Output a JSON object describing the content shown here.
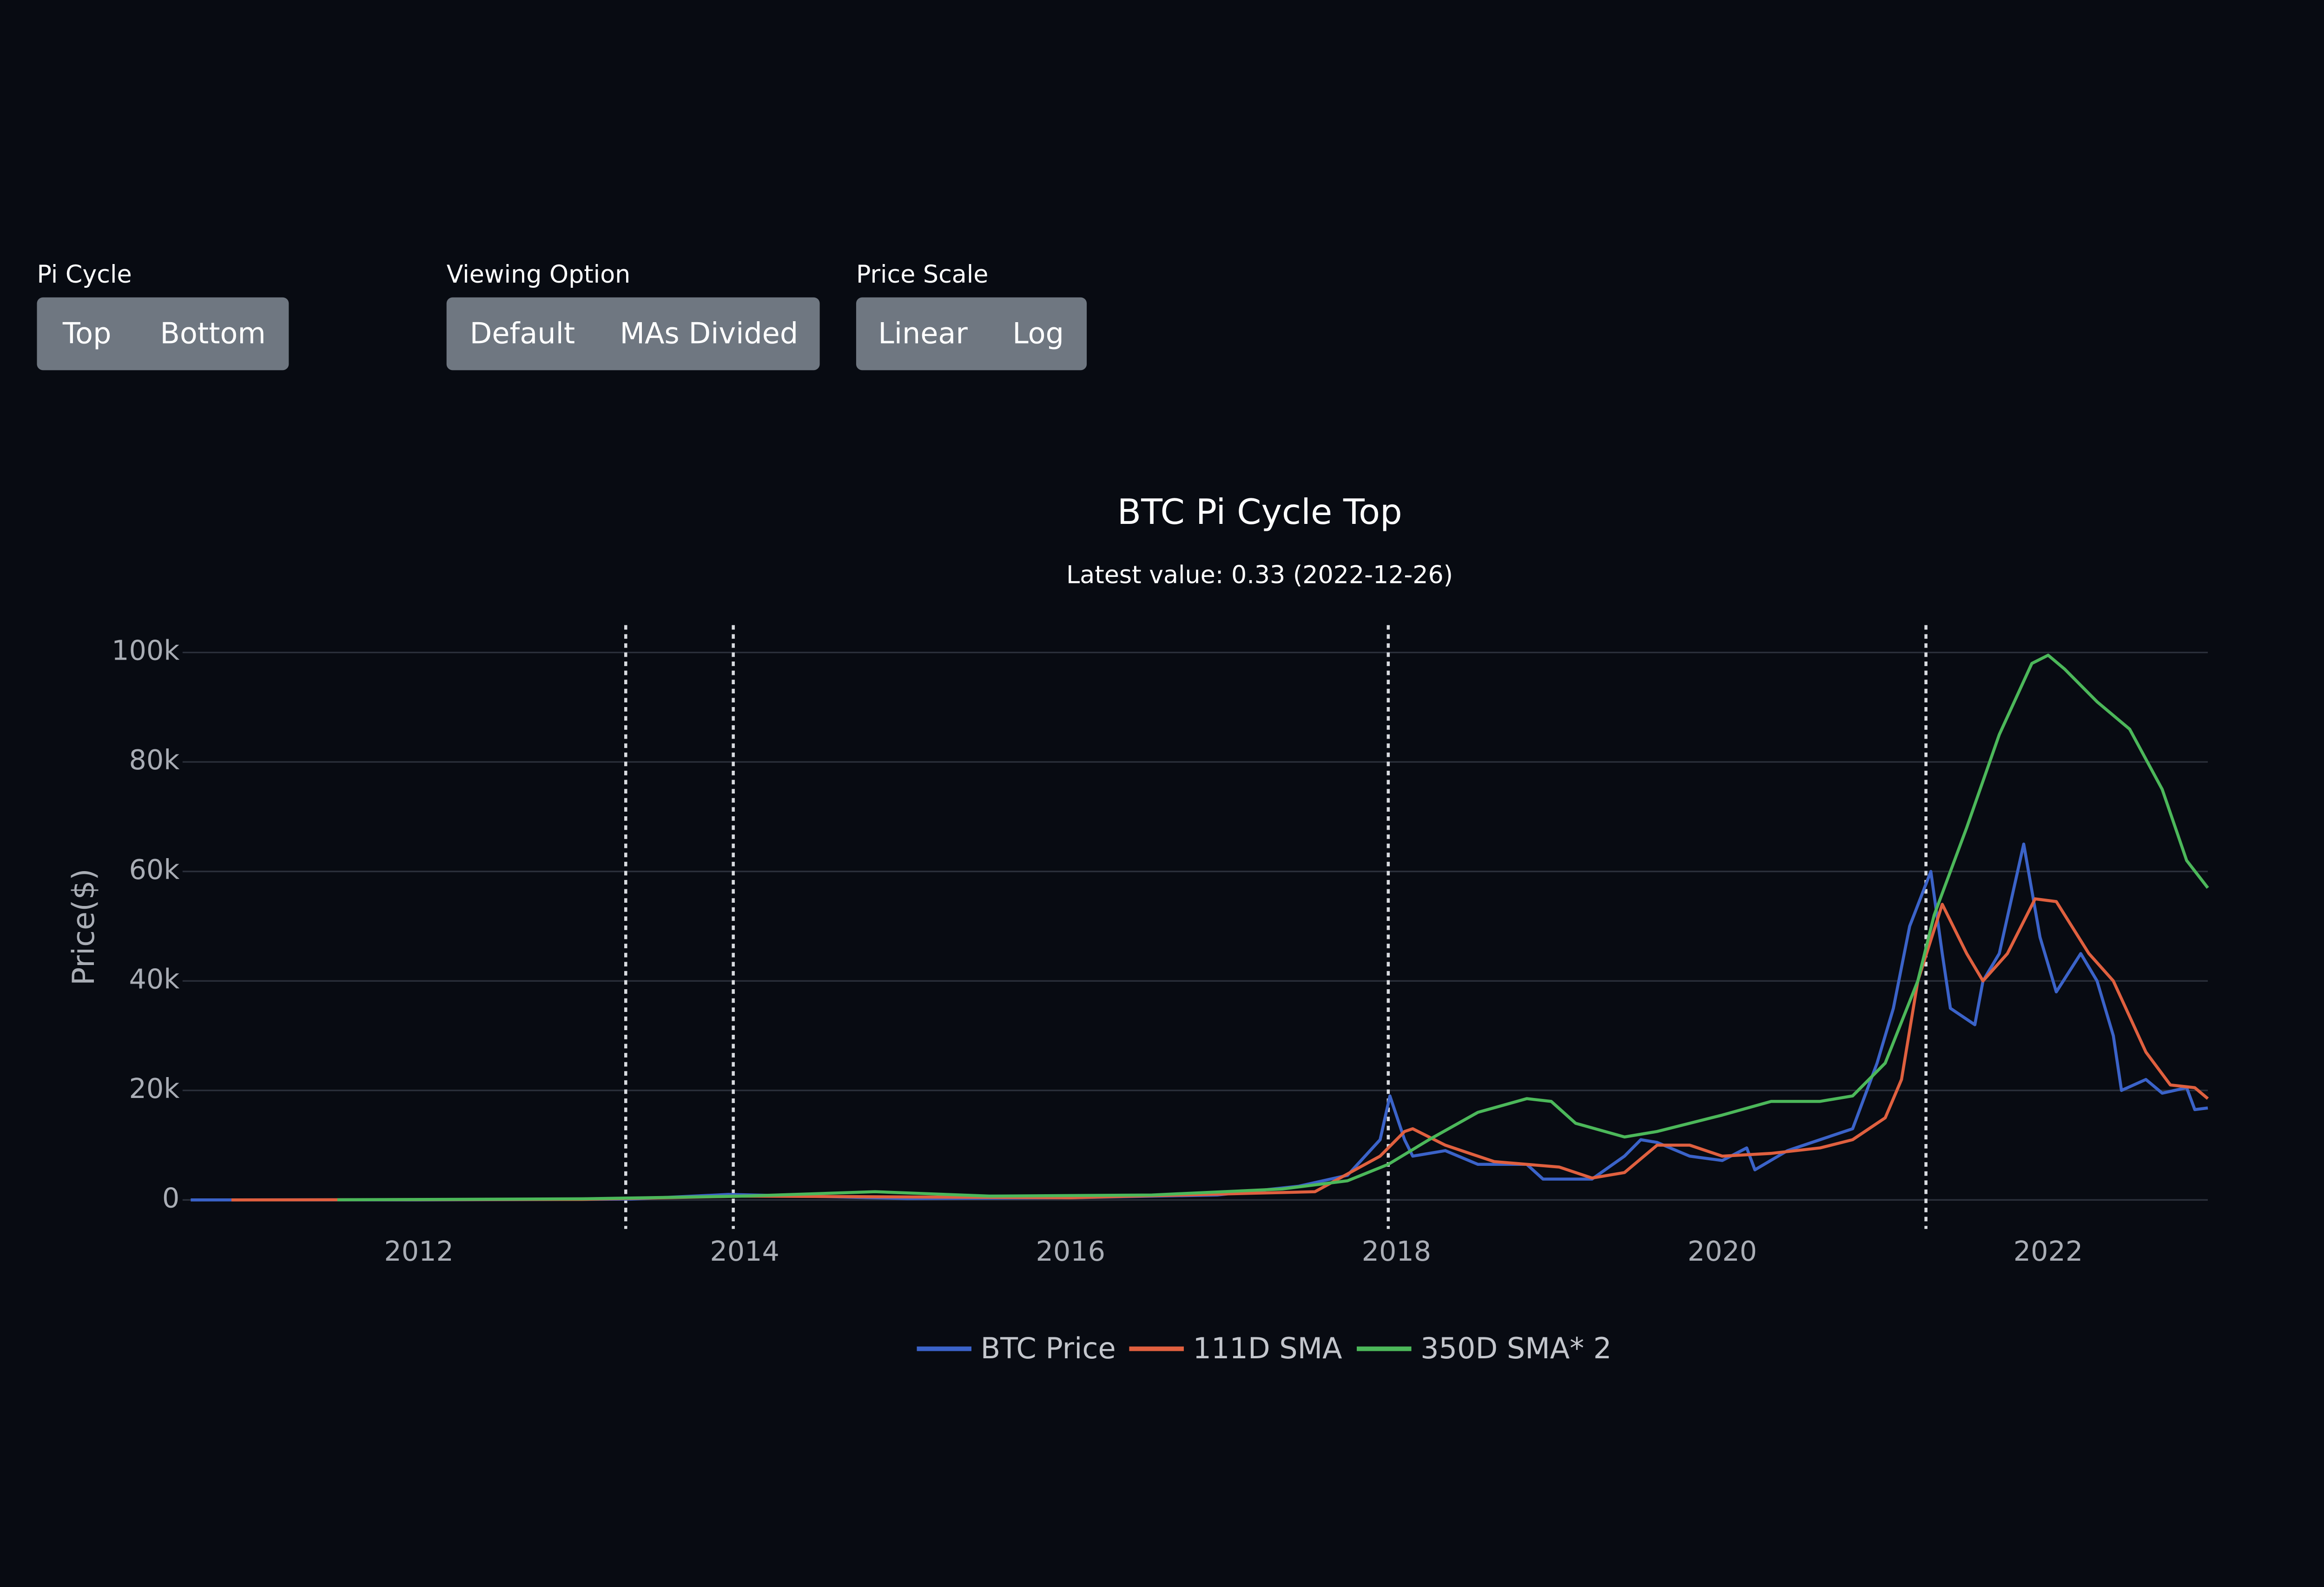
{
  "controls": [
    {
      "label": "Pi Cycle",
      "buttons": [
        "Top",
        "Bottom"
      ]
    },
    {
      "label": "Viewing Option",
      "buttons": [
        "Default",
        "MAs Divided"
      ]
    },
    {
      "label": "Price Scale",
      "buttons": [
        "Linear",
        "Log"
      ]
    }
  ],
  "chart_data": {
    "type": "line",
    "title": "BTC Pi Cycle Top",
    "subtitle": "Latest value: 0.33 (2022-12-26)",
    "y_label": "Price($)",
    "xlim": [
      2010.55,
      2022.98
    ],
    "xticks": [
      2012,
      2014,
      2016,
      2018,
      2020,
      2022
    ],
    "ylim": [
      -5300,
      105000
    ],
    "yticks": [
      0,
      {
        "value": 20000,
        "label": "20k"
      },
      {
        "value": 40000,
        "label": "40k"
      },
      {
        "value": 60000,
        "label": "60k"
      },
      {
        "value": 80000,
        "label": "80k"
      },
      {
        "value": 100000,
        "label": "100k"
      }
    ],
    "grid": true,
    "vlines": [
      2013.27,
      2013.93,
      2017.95,
      2021.25
    ],
    "series": [
      {
        "name": "BTC Price",
        "color": "#3b63c9",
        "x": [
          2010.6,
          2011.5,
          2012,
          2013,
          2013.3,
          2013.9,
          2014.5,
          2015,
          2016,
          2016.9,
          2017.4,
          2017.7,
          2017.9,
          2017.96,
          2018.05,
          2018.1,
          2018.3,
          2018.5,
          2018.8,
          2018.9,
          2019.2,
          2019.4,
          2019.5,
          2019.6,
          2019.8,
          2020.0,
          2020.15,
          2020.2,
          2020.4,
          2020.6,
          2020.8,
          2020.95,
          2021.05,
          2021.15,
          2021.28,
          2021.35,
          2021.4,
          2021.55,
          2021.6,
          2021.7,
          2021.85,
          2021.95,
          2022.05,
          2022.2,
          2022.3,
          2022.4,
          2022.45,
          2022.6,
          2022.7,
          2022.85,
          2022.9,
          2022.98
        ],
        "values": [
          0,
          15,
          5,
          100,
          150,
          1000,
          600,
          250,
          400,
          900,
          2500,
          4500,
          11000,
          19000,
          11000,
          8000,
          9000,
          6500,
          6500,
          3800,
          3800,
          8000,
          11000,
          10500,
          8000,
          7200,
          9500,
          5500,
          9000,
          11000,
          13000,
          25000,
          35000,
          50000,
          60000,
          45000,
          35000,
          32000,
          40000,
          45000,
          65000,
          48000,
          38000,
          45000,
          40000,
          30000,
          20000,
          22000,
          19500,
          20500,
          16500,
          16800
        ]
      },
      {
        "name": "111D SMA",
        "color": "#e0603f",
        "x": [
          2010.85,
          2013,
          2014,
          2016,
          2017.5,
          2017.9,
          2018.05,
          2018.1,
          2018.3,
          2018.6,
          2019.0,
          2019.2,
          2019.4,
          2019.6,
          2019.8,
          2020.0,
          2020.3,
          2020.6,
          2020.8,
          2021.0,
          2021.1,
          2021.2,
          2021.35,
          2021.5,
          2021.6,
          2021.75,
          2021.92,
          2022.05,
          2022.25,
          2022.4,
          2022.6,
          2022.75,
          2022.9,
          2022.98
        ],
        "values": [
          0,
          100,
          700,
          400,
          1500,
          8000,
          12500,
          13000,
          10000,
          7000,
          6000,
          4000,
          5000,
          10000,
          10000,
          8000,
          8500,
          9500,
          11000,
          15000,
          22000,
          40000,
          54000,
          45000,
          40000,
          45000,
          55000,
          54500,
          45000,
          40000,
          27000,
          21000,
          20500,
          18500
        ]
      },
      {
        "name": "350D SMA* 2",
        "color": "#4cb85a",
        "x": [
          2011.5,
          2013,
          2014,
          2014.8,
          2015.5,
          2016.5,
          2017.3,
          2017.7,
          2017.95,
          2018.2,
          2018.5,
          2018.8,
          2018.95,
          2019.1,
          2019.4,
          2019.6,
          2020.0,
          2020.3,
          2020.6,
          2020.8,
          2021.0,
          2021.2,
          2021.3,
          2021.5,
          2021.7,
          2021.9,
          2022.0,
          2022.1,
          2022.3,
          2022.5,
          2022.7,
          2022.85,
          2022.98
        ],
        "values": [
          30,
          200,
          700,
          1500,
          700,
          900,
          2000,
          3500,
          6500,
          11000,
          16000,
          18500,
          18000,
          14000,
          11500,
          12500,
          15500,
          18000,
          18000,
          19000,
          25000,
          40000,
          52000,
          68000,
          85000,
          98000,
          99500,
          97000,
          91000,
          86000,
          75000,
          62000,
          57000
        ]
      }
    ]
  }
}
